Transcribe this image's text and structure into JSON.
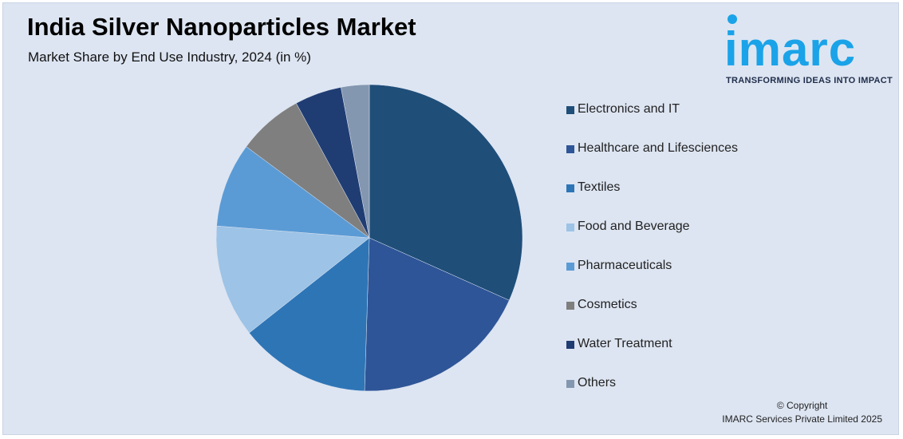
{
  "header": {
    "title": "India Silver Nanoparticles Market",
    "subtitle": "Market Share by End Use Industry, 2024 (in %)"
  },
  "logo": {
    "word": "imarc",
    "tagline": "TRANSFORMING IDEAS INTO IMPACT",
    "color": "#1aa3e8"
  },
  "footer": {
    "copyright": "© Copyright",
    "company": "IMARC Services Private Limited 2025"
  },
  "chart_data": {
    "type": "pie",
    "title": "India Silver Nanoparticles Market",
    "subtitle": "Market Share by End Use Industry, 2024 (in %)",
    "legend_position": "right",
    "start_angle": "12 o'clock, clockwise",
    "categories": [
      "Electronics and IT",
      "Healthcare and Lifesciences",
      "Textiles",
      "Food and Beverage",
      "Pharmaceuticals",
      "Cosmetics",
      "Water Treatment",
      "Others"
    ],
    "values": [
      32,
      19,
      14,
      12,
      9,
      7,
      5,
      3
    ],
    "colors": [
      "#1f4e79",
      "#2e5597",
      "#2e75b6",
      "#9dc3e6",
      "#5b9bd5",
      "#7f7f7f",
      "#203d73",
      "#8497b0"
    ]
  }
}
